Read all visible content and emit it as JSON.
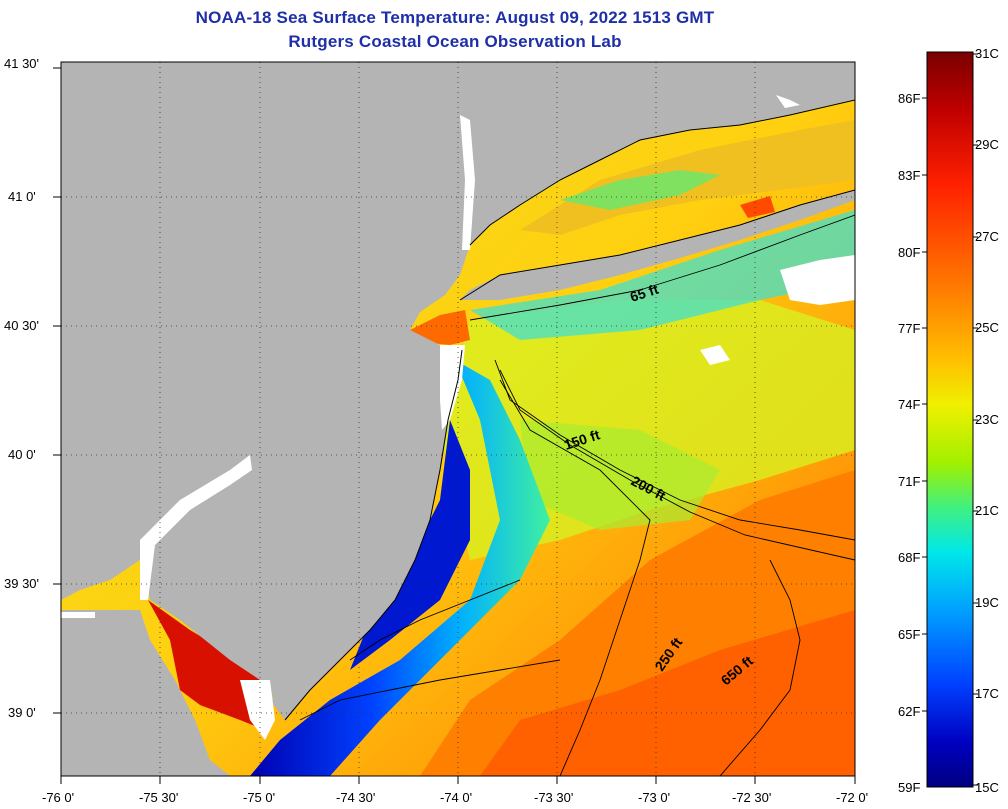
{
  "title_line1": "NOAA-18 Sea Surface Temperature:  August 09, 2022 1513 GMT",
  "title_line2": "Rutgers Coastal Ocean Observation Lab",
  "lat_labels": [
    "41 30'",
    "41 0'",
    "40 30'",
    "40 0'",
    "39 30'",
    "39 0'"
  ],
  "lon_labels": [
    "-76 0'",
    "-75 30'",
    "-75 0'",
    "-74 30'",
    "-74 0'",
    "-73 30'",
    "-73 0'",
    "-72 30'",
    "-72 0'"
  ],
  "depth_contours": [
    "65 ft",
    "150 ft",
    "200 ft",
    "250 ft",
    "650 ft"
  ],
  "colorbar": {
    "celsius": [
      "31C",
      "29C",
      "27C",
      "25C",
      "23C",
      "21C",
      "19C",
      "17C",
      "15C"
    ],
    "fahrenheit": [
      "86F",
      "83F",
      "80F",
      "77F",
      "74F",
      "71F",
      "68F",
      "65F",
      "62F",
      "59F"
    ],
    "colors_top_to_bottom": [
      "#7a0000",
      "#c00000",
      "#ff2000",
      "#ff7a00",
      "#ffc000",
      "#f0f000",
      "#b0f000",
      "#40f080",
      "#00e8e8",
      "#00a0ff",
      "#0040ff",
      "#0000c0",
      "#000080"
    ]
  },
  "colors": {
    "land": "#b4b4b4",
    "cloud": "#ffffff",
    "title": "#1f2fa8"
  }
}
